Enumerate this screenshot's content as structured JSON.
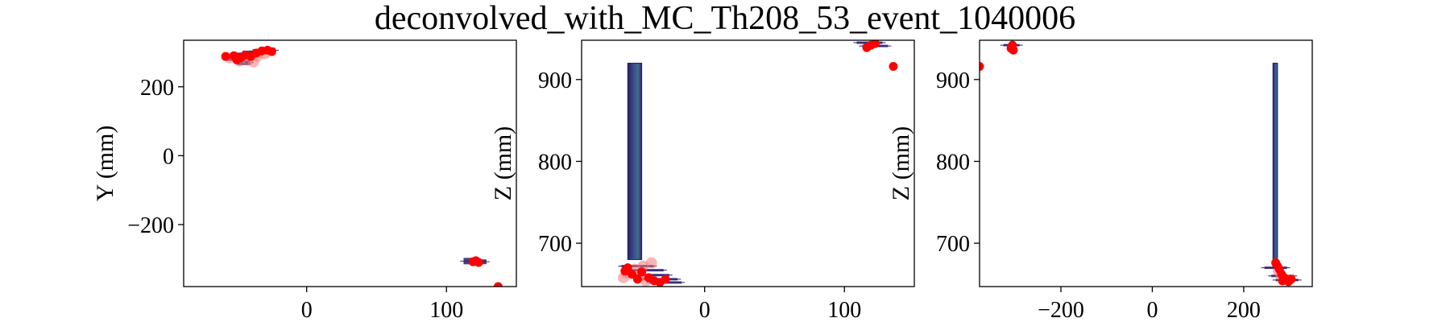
{
  "figure": {
    "title": "deconvolved_with_MC_Th208_53_event_1040006"
  },
  "colors": {
    "point": "#ff0000",
    "point_faint": "#f07a7a",
    "hit": "#2b1f6e",
    "column_dark": "#2a1f63",
    "column_mid": "#3b4f8c",
    "column_light": "#3f6e8e"
  },
  "chart_data": [
    {
      "type": "scatter",
      "panel": "xy",
      "title": "",
      "xlabel": "",
      "ylabel": "Y (mm)",
      "xlim": [
        -88,
        150
      ],
      "ylim": [
        -380,
        335
      ],
      "grid": false,
      "xticks": [
        0,
        100
      ],
      "xtick_labels": [
        "0",
        "100"
      ],
      "yticks": [
        200,
        0,
        -200
      ],
      "ytick_labels": [
        "200",
        "0",
        "−200"
      ],
      "hits": [
        {
          "x": -46,
          "y": 292,
          "w": 9,
          "h": 6
        },
        {
          "x": -40,
          "y": 298,
          "w": 10,
          "h": 6
        },
        {
          "x": -33,
          "y": 302,
          "w": 10,
          "h": 6
        },
        {
          "x": -28,
          "y": 306,
          "w": 10,
          "h": 6
        },
        {
          "x": -52,
          "y": 282,
          "w": 8,
          "h": 6
        },
        {
          "x": -45,
          "y": 270,
          "w": 8,
          "h": 6
        },
        {
          "x": 118,
          "y": -306,
          "w": 10,
          "h": 8
        },
        {
          "x": 124,
          "y": -308,
          "w": 8,
          "h": 6
        }
      ],
      "points_faint": [
        {
          "x": -42,
          "y": 278
        },
        {
          "x": -38,
          "y": 272
        },
        {
          "x": -55,
          "y": 284
        },
        {
          "x": -35,
          "y": 290
        },
        {
          "x": -48,
          "y": 275
        },
        {
          "x": -30,
          "y": 296
        }
      ],
      "points": [
        {
          "x": -52,
          "y": 290
        },
        {
          "x": -47,
          "y": 285
        },
        {
          "x": -44,
          "y": 292
        },
        {
          "x": -40,
          "y": 288
        },
        {
          "x": -36,
          "y": 298
        },
        {
          "x": -32,
          "y": 304
        },
        {
          "x": -28,
          "y": 306
        },
        {
          "x": -25,
          "y": 302
        },
        {
          "x": -50,
          "y": 278
        },
        {
          "x": -58,
          "y": 288
        },
        {
          "x": 119,
          "y": -308
        },
        {
          "x": 121,
          "y": -305
        },
        {
          "x": 123,
          "y": -310
        },
        {
          "x": 137,
          "y": -380
        }
      ]
    },
    {
      "type": "scatter",
      "panel": "xz",
      "title": "",
      "xlabel": "",
      "ylabel": "Z (mm)",
      "xlim": [
        -88,
        150
      ],
      "ylim": [
        647,
        948
      ],
      "grid": false,
      "xticks": [
        0,
        100
      ],
      "xtick_labels": [
        "0",
        "100"
      ],
      "yticks": [
        900,
        800,
        700
      ],
      "ytick_labels": [
        "900",
        "800",
        "700"
      ],
      "columns": [
        {
          "x0": -55,
          "x1": -45,
          "z0": 680,
          "z1": 920
        }
      ],
      "hits": [
        {
          "x": -48,
          "y": 672,
          "w": 20,
          "h": 3
        },
        {
          "x": -42,
          "y": 667,
          "w": 22,
          "h": 3
        },
        {
          "x": -38,
          "y": 661,
          "w": 22,
          "h": 3
        },
        {
          "x": -32,
          "y": 656,
          "w": 22,
          "h": 3
        },
        {
          "x": -28,
          "y": 652,
          "w": 20,
          "h": 3
        },
        {
          "x": 118,
          "y": 945,
          "w": 16,
          "h": 3
        },
        {
          "x": 122,
          "y": 941,
          "w": 16,
          "h": 3
        }
      ],
      "points_faint": [
        {
          "x": -56,
          "y": 664
        },
        {
          "x": -50,
          "y": 668
        },
        {
          "x": -44,
          "y": 672
        },
        {
          "x": -38,
          "y": 676
        },
        {
          "x": -58,
          "y": 658
        },
        {
          "x": -46,
          "y": 660
        },
        {
          "x": -42,
          "y": 654
        }
      ],
      "points": [
        {
          "x": -55,
          "y": 670
        },
        {
          "x": -52,
          "y": 662
        },
        {
          "x": -48,
          "y": 656
        },
        {
          "x": -45,
          "y": 665
        },
        {
          "x": -40,
          "y": 658
        },
        {
          "x": -36,
          "y": 654
        },
        {
          "x": -32,
          "y": 652
        },
        {
          "x": -28,
          "y": 656
        },
        {
          "x": -57,
          "y": 666
        },
        {
          "x": 116,
          "y": 939
        },
        {
          "x": 119,
          "y": 942
        },
        {
          "x": 122,
          "y": 944
        },
        {
          "x": 135,
          "y": 916
        }
      ]
    },
    {
      "type": "scatter",
      "panel": "yz",
      "title": "",
      "xlabel": "",
      "ylabel": "Z (mm)",
      "xlim": [
        -378,
        350
      ],
      "ylim": [
        647,
        948
      ],
      "grid": false,
      "xticks": [
        -200,
        0,
        200
      ],
      "xtick_labels": [
        "−200",
        "0",
        "200"
      ],
      "yticks": [
        900,
        800,
        700
      ],
      "ytick_labels": [
        "900",
        "800",
        "700"
      ],
      "columns": [
        {
          "x0": 264,
          "x1": 274,
          "z0": 670,
          "z1": 920
        }
      ],
      "hits": [
        {
          "x": 270,
          "y": 670,
          "w": 14,
          "h": 3
        },
        {
          "x": 285,
          "y": 660,
          "w": 14,
          "h": 3
        },
        {
          "x": 295,
          "y": 655,
          "w": 14,
          "h": 3
        },
        {
          "x": -308,
          "y": 942,
          "w": 10,
          "h": 3
        }
      ],
      "points_faint": [
        {
          "x": 276,
          "y": 666
        },
        {
          "x": 282,
          "y": 660
        },
        {
          "x": 290,
          "y": 656
        }
      ],
      "points": [
        {
          "x": 270,
          "y": 676
        },
        {
          "x": 274,
          "y": 672
        },
        {
          "x": 278,
          "y": 668
        },
        {
          "x": 283,
          "y": 662
        },
        {
          "x": 288,
          "y": 658
        },
        {
          "x": 293,
          "y": 655
        },
        {
          "x": 298,
          "y": 653
        },
        {
          "x": 304,
          "y": 656
        },
        {
          "x": 285,
          "y": 654
        },
        {
          "x": -309,
          "y": 938
        },
        {
          "x": -306,
          "y": 942
        },
        {
          "x": -304,
          "y": 936
        },
        {
          "x": -378,
          "y": 916
        }
      ]
    }
  ]
}
